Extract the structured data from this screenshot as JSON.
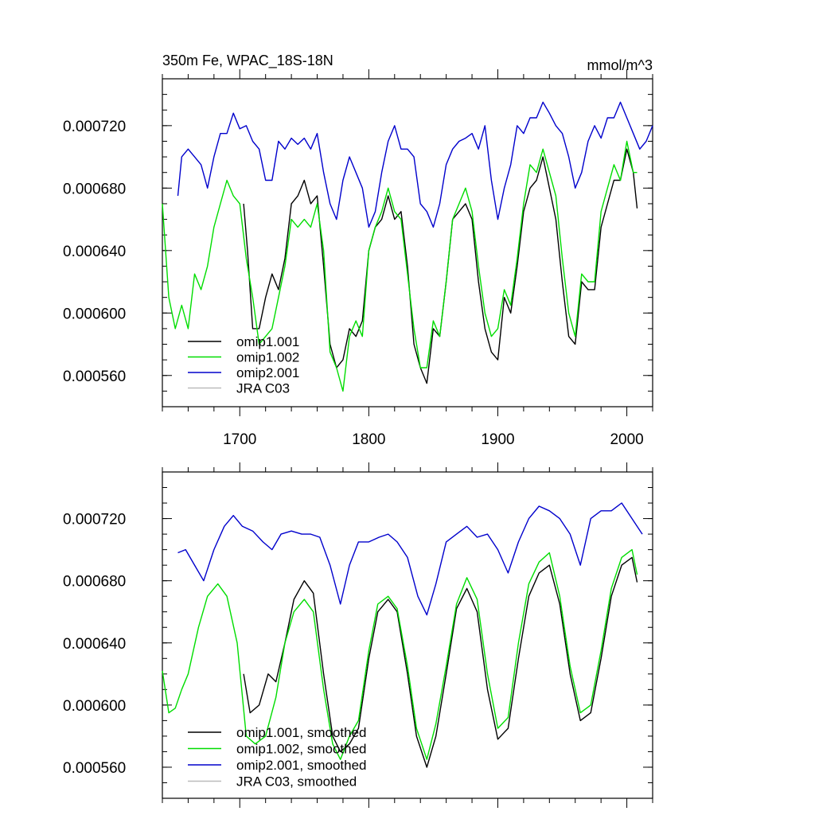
{
  "chart_data": [
    {
      "type": "line",
      "title": "350m Fe, WPAC_18S-18N",
      "units": "mmol/m^3",
      "xlim": [
        1640,
        2020
      ],
      "ylim": [
        0.00054,
        0.00075
      ],
      "xticks": [
        1700,
        1800,
        1900,
        2000
      ],
      "xtick_labels": [
        "1700",
        "1800",
        "1900",
        "2000"
      ],
      "yticks": [
        0.00056,
        0.0006,
        0.00064,
        0.00068,
        0.00072
      ],
      "ytick_labels": [
        "0.000560",
        "0.000600",
        "0.000640",
        "0.000680",
        "0.000720"
      ],
      "grid": false,
      "legend": "bottom-left",
      "series": [
        {
          "name": "omip1.001",
          "color": "#000000",
          "x": [
            1703,
            1706,
            1710,
            1715,
            1720,
            1725,
            1730,
            1735,
            1740,
            1745,
            1750,
            1755,
            1760,
            1765,
            1770,
            1775,
            1780,
            1785,
            1790,
            1795,
            1800,
            1805,
            1810,
            1815,
            1820,
            1825,
            1830,
            1835,
            1840,
            1845,
            1850,
            1855,
            1860,
            1865,
            1870,
            1875,
            1880,
            1885,
            1890,
            1895,
            1900,
            1905,
            1910,
            1915,
            1920,
            1925,
            1930,
            1935,
            1940,
            1945,
            1950,
            1955,
            1960,
            1965,
            1970,
            1975,
            1980,
            1985,
            1990,
            1995,
            2000,
            2005,
            2008
          ],
          "y": [
            0.00067,
            0.00064,
            0.00059,
            0.00059,
            0.00061,
            0.000625,
            0.000615,
            0.000635,
            0.00067,
            0.000675,
            0.000685,
            0.00067,
            0.000675,
            0.00063,
            0.00058,
            0.000565,
            0.00057,
            0.00059,
            0.000585,
            0.000595,
            0.00064,
            0.000655,
            0.00066,
            0.000675,
            0.00066,
            0.000665,
            0.00063,
            0.00058,
            0.000565,
            0.000555,
            0.00059,
            0.000585,
            0.00062,
            0.00066,
            0.000665,
            0.00067,
            0.00066,
            0.00062,
            0.00059,
            0.000575,
            0.00057,
            0.00061,
            0.0006,
            0.00063,
            0.000665,
            0.00068,
            0.000685,
            0.0007,
            0.00068,
            0.00066,
            0.00062,
            0.000585,
            0.00058,
            0.00062,
            0.000615,
            0.000615,
            0.000655,
            0.00067,
            0.000685,
            0.000685,
            0.000705,
            0.00069,
            0.000667
          ]
        },
        {
          "name": "omip1.002",
          "color": "#00dd00",
          "x": [
            1640,
            1645,
            1650,
            1655,
            1660,
            1665,
            1670,
            1675,
            1680,
            1685,
            1690,
            1695,
            1700,
            1705,
            1710,
            1715,
            1720,
            1725,
            1730,
            1735,
            1740,
            1745,
            1750,
            1755,
            1760,
            1765,
            1770,
            1775,
            1780,
            1785,
            1790,
            1795,
            1800,
            1805,
            1810,
            1815,
            1820,
            1825,
            1830,
            1835,
            1840,
            1845,
            1850,
            1855,
            1860,
            1865,
            1870,
            1875,
            1880,
            1885,
            1890,
            1895,
            1900,
            1905,
            1910,
            1915,
            1920,
            1925,
            1930,
            1935,
            1940,
            1945,
            1950,
            1955,
            1960,
            1965,
            1970,
            1975,
            1980,
            1985,
            1990,
            1995,
            2000,
            2005,
            2008
          ],
          "y": [
            0.00067,
            0.00061,
            0.00059,
            0.000605,
            0.00059,
            0.000625,
            0.000615,
            0.00063,
            0.000655,
            0.00067,
            0.000685,
            0.000675,
            0.00067,
            0.000635,
            0.00061,
            0.00058,
            0.000585,
            0.00059,
            0.00061,
            0.00063,
            0.00066,
            0.000655,
            0.00066,
            0.000655,
            0.00067,
            0.00064,
            0.000575,
            0.000565,
            0.00055,
            0.000585,
            0.000595,
            0.000585,
            0.00064,
            0.000655,
            0.000665,
            0.00068,
            0.000665,
            0.00066,
            0.000625,
            0.00059,
            0.000565,
            0.000565,
            0.000595,
            0.000585,
            0.00062,
            0.00066,
            0.00067,
            0.00068,
            0.000665,
            0.00063,
            0.0006,
            0.000585,
            0.00059,
            0.000615,
            0.000605,
            0.000635,
            0.00067,
            0.000695,
            0.00069,
            0.000705,
            0.00069,
            0.000675,
            0.000635,
            0.0006,
            0.000585,
            0.000625,
            0.00062,
            0.00062,
            0.000665,
            0.00068,
            0.000695,
            0.000685,
            0.00071,
            0.00069,
            0.00069
          ]
        },
        {
          "name": "omip2.001",
          "color": "#0000cc",
          "x": [
            1652,
            1655,
            1660,
            1665,
            1670,
            1675,
            1680,
            1685,
            1690,
            1695,
            1700,
            1705,
            1710,
            1715,
            1720,
            1725,
            1730,
            1735,
            1740,
            1745,
            1750,
            1755,
            1760,
            1765,
            1770,
            1775,
            1780,
            1785,
            1790,
            1795,
            1800,
            1805,
            1810,
            1815,
            1820,
            1825,
            1830,
            1835,
            1840,
            1845,
            1850,
            1855,
            1860,
            1865,
            1870,
            1875,
            1880,
            1885,
            1890,
            1895,
            1900,
            1905,
            1910,
            1915,
            1920,
            1925,
            1930,
            1935,
            1940,
            1945,
            1950,
            1955,
            1960,
            1965,
            1970,
            1975,
            1980,
            1985,
            1990,
            1995,
            2000,
            2005,
            2010,
            2015,
            2020
          ],
          "y": [
            0.000675,
            0.0007,
            0.000705,
            0.0007,
            0.000695,
            0.00068,
            0.0007,
            0.000715,
            0.000715,
            0.000728,
            0.000718,
            0.00072,
            0.00071,
            0.000705,
            0.000685,
            0.000685,
            0.00071,
            0.000705,
            0.000712,
            0.000708,
            0.000712,
            0.000705,
            0.000715,
            0.00069,
            0.00067,
            0.00066,
            0.000685,
            0.0007,
            0.00069,
            0.00068,
            0.000655,
            0.000665,
            0.00069,
            0.00071,
            0.00072,
            0.000705,
            0.000705,
            0.0007,
            0.00067,
            0.000665,
            0.000655,
            0.00067,
            0.000695,
            0.000705,
            0.00071,
            0.000712,
            0.000715,
            0.000705,
            0.00072,
            0.000685,
            0.00066,
            0.00068,
            0.000695,
            0.00072,
            0.000715,
            0.000725,
            0.000725,
            0.000735,
            0.000728,
            0.00072,
            0.000715,
            0.0007,
            0.00068,
            0.00069,
            0.00071,
            0.00072,
            0.000712,
            0.000725,
            0.000725,
            0.000735,
            0.000725,
            0.000715,
            0.000705,
            0.00071,
            0.00072
          ]
        },
        {
          "name": "JRA C03",
          "color": "#bbbbbb",
          "x": [],
          "y": []
        }
      ]
    },
    {
      "type": "line",
      "title": "",
      "xlim": [
        1640,
        2020
      ],
      "ylim": [
        0.00054,
        0.00075
      ],
      "xticks": [
        1700,
        1800,
        1900,
        2000
      ],
      "xtick_labels": [],
      "yticks": [
        0.00056,
        0.0006,
        0.00064,
        0.00068,
        0.00072
      ],
      "ytick_labels": [
        "0.000560",
        "0.000600",
        "0.000640",
        "0.000680",
        "0.000720"
      ],
      "grid": false,
      "legend": "bottom-left",
      "series": [
        {
          "name": "omip1.001, smoothed",
          "color": "#000000",
          "x": [
            1703,
            1708,
            1715,
            1722,
            1728,
            1735,
            1742,
            1750,
            1757,
            1765,
            1772,
            1778,
            1785,
            1792,
            1800,
            1807,
            1815,
            1822,
            1830,
            1837,
            1845,
            1852,
            1860,
            1868,
            1876,
            1884,
            1892,
            1900,
            1908,
            1916,
            1924,
            1932,
            1940,
            1948,
            1956,
            1964,
            1972,
            1980,
            1988,
            1996,
            2004,
            2008
          ],
          "y": [
            0.00062,
            0.000595,
            0.0006,
            0.00062,
            0.000615,
            0.00064,
            0.000668,
            0.00068,
            0.000672,
            0.00062,
            0.00058,
            0.00057,
            0.000575,
            0.000585,
            0.00063,
            0.00066,
            0.000668,
            0.00066,
            0.00062,
            0.00058,
            0.00056,
            0.00058,
            0.00062,
            0.000662,
            0.000675,
            0.00066,
            0.00061,
            0.000578,
            0.000585,
            0.00063,
            0.00067,
            0.000685,
            0.00069,
            0.000665,
            0.00062,
            0.00059,
            0.000595,
            0.00063,
            0.00067,
            0.00069,
            0.000695,
            0.000679
          ]
        },
        {
          "name": "omip1.002, smoothed",
          "color": "#00dd00",
          "x": [
            1640,
            1645,
            1650,
            1655,
            1660,
            1668,
            1675,
            1683,
            1690,
            1698,
            1705,
            1712,
            1720,
            1728,
            1735,
            1742,
            1750,
            1757,
            1765,
            1772,
            1778,
            1785,
            1792,
            1800,
            1807,
            1815,
            1822,
            1830,
            1837,
            1845,
            1852,
            1860,
            1868,
            1876,
            1884,
            1892,
            1900,
            1908,
            1916,
            1924,
            1932,
            1940,
            1948,
            1956,
            1964,
            1972,
            1980,
            1988,
            1996,
            2004,
            2008
          ],
          "y": [
            0.000622,
            0.000595,
            0.000598,
            0.00061,
            0.00062,
            0.00065,
            0.00067,
            0.000678,
            0.00067,
            0.00064,
            0.00058,
            0.000575,
            0.00058,
            0.000605,
            0.00064,
            0.00066,
            0.000668,
            0.00066,
            0.00061,
            0.000575,
            0.000565,
            0.00058,
            0.00059,
            0.000635,
            0.000665,
            0.00067,
            0.000662,
            0.000625,
            0.000585,
            0.000565,
            0.000588,
            0.000625,
            0.000665,
            0.000682,
            0.000668,
            0.00062,
            0.000585,
            0.000592,
            0.00064,
            0.000678,
            0.000692,
            0.000698,
            0.00067,
            0.000625,
            0.000595,
            0.0006,
            0.000635,
            0.000675,
            0.000695,
            0.0007,
            0.000684
          ]
        },
        {
          "name": "omip2.001, smoothed",
          "color": "#0000cc",
          "x": [
            1652,
            1658,
            1665,
            1672,
            1680,
            1688,
            1695,
            1702,
            1710,
            1718,
            1725,
            1732,
            1740,
            1748,
            1755,
            1762,
            1770,
            1778,
            1785,
            1792,
            1800,
            1808,
            1815,
            1822,
            1830,
            1838,
            1845,
            1852,
            1860,
            1868,
            1876,
            1884,
            1892,
            1900,
            1908,
            1916,
            1924,
            1932,
            1940,
            1948,
            1956,
            1964,
            1972,
            1980,
            1988,
            1996,
            2004,
            2012
          ],
          "y": [
            0.000698,
            0.0007,
            0.00069,
            0.00068,
            0.0007,
            0.000715,
            0.000722,
            0.000715,
            0.000712,
            0.000705,
            0.0007,
            0.00071,
            0.000712,
            0.00071,
            0.00071,
            0.000708,
            0.00069,
            0.000665,
            0.00069,
            0.000705,
            0.000705,
            0.000708,
            0.00071,
            0.000705,
            0.000695,
            0.00067,
            0.000658,
            0.000678,
            0.000705,
            0.00071,
            0.000715,
            0.000708,
            0.00071,
            0.0007,
            0.000685,
            0.000705,
            0.00072,
            0.000728,
            0.000725,
            0.00072,
            0.00071,
            0.00069,
            0.00072,
            0.000725,
            0.000725,
            0.00073,
            0.00072,
            0.00071
          ]
        },
        {
          "name": "JRA C03, smoothed",
          "color": "#bbbbbb",
          "x": [],
          "y": []
        }
      ]
    }
  ]
}
